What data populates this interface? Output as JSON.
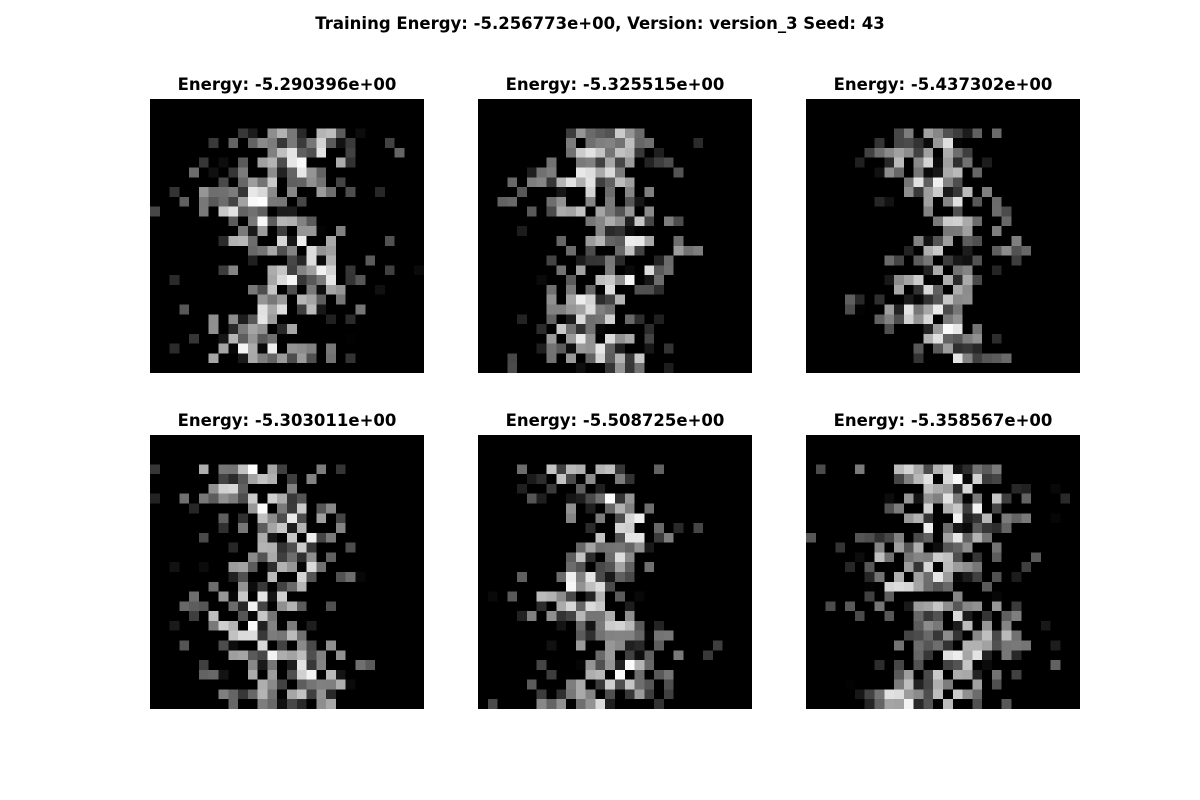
{
  "figure": {
    "suptitle": "Training Energy: -5.256773e+00, Version: version_3 Seed: 43"
  },
  "chart_data": {
    "type": "heatmap",
    "colormap": "gray",
    "axes": "off",
    "grid_shape": [
      2,
      3
    ],
    "image_size": [
      28,
      28
    ],
    "panels": [
      {
        "title": "Energy: -5.290396e+00",
        "energy": -5.290396
      },
      {
        "title": "Energy: -5.325515e+00",
        "energy": -5.325515
      },
      {
        "title": "Energy: -5.437302e+00",
        "energy": -5.437302
      },
      {
        "title": "Energy: -5.303011e+00",
        "energy": -5.303011
      },
      {
        "title": "Energy: -5.508725e+00",
        "energy": -5.508725
      },
      {
        "title": "Energy: -5.358567e+00",
        "energy": -5.358567
      }
    ]
  }
}
